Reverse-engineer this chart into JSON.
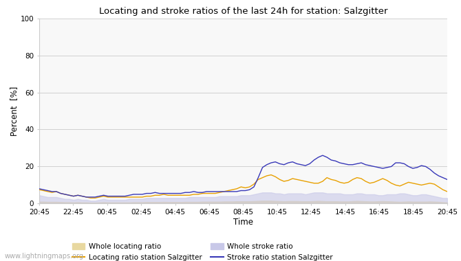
{
  "title": "Locating and stroke ratios of the last 24h for station: Salzgitter",
  "xlabel": "Time",
  "ylabel": "Percent  [%]",
  "ylim": [
    0,
    100
  ],
  "yticks": [
    0,
    20,
    40,
    60,
    80,
    100
  ],
  "x_labels": [
    "20:45",
    "22:45",
    "00:45",
    "02:45",
    "04:45",
    "06:45",
    "08:45",
    "10:45",
    "12:45",
    "14:45",
    "16:45",
    "18:45",
    "20:45"
  ],
  "watermark": "www.lightningmaps.org",
  "bg_color": "#ffffff",
  "plot_bg_color": "#f8f8f8",
  "grid_color": "#d0d0d0",
  "whole_locating_color": "#e8d8a0",
  "whole_stroke_color": "#c8c8e8",
  "locating_line_color": "#e8a000",
  "stroke_line_color": "#3838b8",
  "legend_labels": [
    "Whole locating ratio",
    "Whole stroke ratio",
    "Locating ratio station Salzgitter",
    "Stroke ratio station Salzgitter"
  ],
  "locating_ratio": [
    7.5,
    7.0,
    6.5,
    6.0,
    6.5,
    5.5,
    5.0,
    4.5,
    4.0,
    4.5,
    4.0,
    3.5,
    3.0,
    3.0,
    3.5,
    4.0,
    3.5,
    3.5,
    3.5,
    3.5,
    3.5,
    3.5,
    3.5,
    3.5,
    3.5,
    4.0,
    4.0,
    4.5,
    4.5,
    5.0,
    4.5,
    4.5,
    4.5,
    4.5,
    4.5,
    4.5,
    5.0,
    5.0,
    5.5,
    5.5,
    5.5,
    5.5,
    6.0,
    6.5,
    7.0,
    7.5,
    8.0,
    9.0,
    8.5,
    9.0,
    10.5,
    13.0,
    14.0,
    15.0,
    15.5,
    14.5,
    13.0,
    12.0,
    12.5,
    13.5,
    13.0,
    12.5,
    12.0,
    11.5,
    11.0,
    11.0,
    12.0,
    14.0,
    13.0,
    12.5,
    11.5,
    11.0,
    11.5,
    13.0,
    14.0,
    13.5,
    12.0,
    11.0,
    11.5,
    12.5,
    13.5,
    12.5,
    11.0,
    10.0,
    9.5,
    10.5,
    11.5,
    11.0,
    10.5,
    10.0,
    10.5,
    11.0,
    10.5,
    9.0,
    7.5,
    6.5
  ],
  "stroke_ratio": [
    8.0,
    7.5,
    7.0,
    6.5,
    6.5,
    5.5,
    5.0,
    4.5,
    4.0,
    4.5,
    4.0,
    3.5,
    3.5,
    3.5,
    4.0,
    4.5,
    4.0,
    4.0,
    4.0,
    4.0,
    4.0,
    4.5,
    5.0,
    5.0,
    5.0,
    5.5,
    5.5,
    6.0,
    5.5,
    5.5,
    5.5,
    5.5,
    5.5,
    5.5,
    6.0,
    6.0,
    6.5,
    6.0,
    6.0,
    6.5,
    6.5,
    6.5,
    6.5,
    6.5,
    6.5,
    6.5,
    6.5,
    7.0,
    7.0,
    7.5,
    9.0,
    14.0,
    19.5,
    21.0,
    22.0,
    22.5,
    21.5,
    21.0,
    22.0,
    22.5,
    21.5,
    21.0,
    20.5,
    21.5,
    23.5,
    25.0,
    26.0,
    25.0,
    23.5,
    23.0,
    22.0,
    21.5,
    21.0,
    21.0,
    21.5,
    22.0,
    21.0,
    20.5,
    20.0,
    19.5,
    19.0,
    19.5,
    20.0,
    22.0,
    22.0,
    21.5,
    20.0,
    19.0,
    19.5,
    20.5,
    20.0,
    18.5,
    16.5,
    15.0,
    14.0,
    13.0
  ],
  "whole_locating": [
    1.0,
    1.0,
    0.9,
    0.9,
    0.9,
    0.8,
    0.7,
    0.7,
    0.6,
    0.7,
    0.6,
    0.6,
    0.5,
    0.5,
    0.6,
    0.7,
    0.6,
    0.6,
    0.6,
    0.6,
    0.6,
    0.6,
    0.7,
    0.7,
    0.7,
    0.8,
    0.8,
    0.8,
    0.8,
    0.9,
    0.8,
    0.8,
    0.8,
    0.8,
    0.9,
    0.9,
    0.9,
    0.9,
    1.0,
    1.0,
    1.0,
    1.0,
    1.0,
    1.1,
    1.1,
    1.1,
    1.2,
    1.2,
    1.2,
    1.2,
    1.3,
    1.4,
    1.5,
    1.5,
    1.5,
    1.4,
    1.3,
    1.2,
    1.3,
    1.3,
    1.3,
    1.2,
    1.2,
    1.2,
    1.3,
    1.4,
    1.3,
    1.2,
    1.2,
    1.2,
    1.1,
    1.1,
    1.1,
    1.3,
    1.4,
    1.3,
    1.2,
    1.1,
    1.1,
    1.2,
    1.3,
    1.2,
    1.1,
    1.0,
    0.9,
    1.0,
    1.1,
    1.0,
    1.0,
    1.0,
    1.0,
    1.1,
    1.0,
    0.9,
    0.7,
    0.6
  ],
  "whole_stroke": [
    4.5,
    4.0,
    3.5,
    3.5,
    3.5,
    3.0,
    2.5,
    2.5,
    2.0,
    2.5,
    2.0,
    2.0,
    1.5,
    1.5,
    2.0,
    2.5,
    2.0,
    2.0,
    2.0,
    2.0,
    2.0,
    2.5,
    2.5,
    2.5,
    2.5,
    3.0,
    3.0,
    3.0,
    3.0,
    3.0,
    3.0,
    3.0,
    3.0,
    3.0,
    3.0,
    3.5,
    3.5,
    3.5,
    3.5,
    3.5,
    3.5,
    3.5,
    4.0,
    4.0,
    4.0,
    4.0,
    4.0,
    4.5,
    4.5,
    4.5,
    5.0,
    5.5,
    6.0,
    6.0,
    6.0,
    5.5,
    5.5,
    5.0,
    5.5,
    5.5,
    5.5,
    5.5,
    5.0,
    5.5,
    6.0,
    6.0,
    6.0,
    5.5,
    5.5,
    5.5,
    5.5,
    5.0,
    5.0,
    5.0,
    5.5,
    5.5,
    5.0,
    5.0,
    5.0,
    4.5,
    4.5,
    5.0,
    5.0,
    5.0,
    5.5,
    5.5,
    5.0,
    4.5,
    4.5,
    5.0,
    5.0,
    4.5,
    4.0,
    3.5,
    3.0,
    3.0
  ]
}
